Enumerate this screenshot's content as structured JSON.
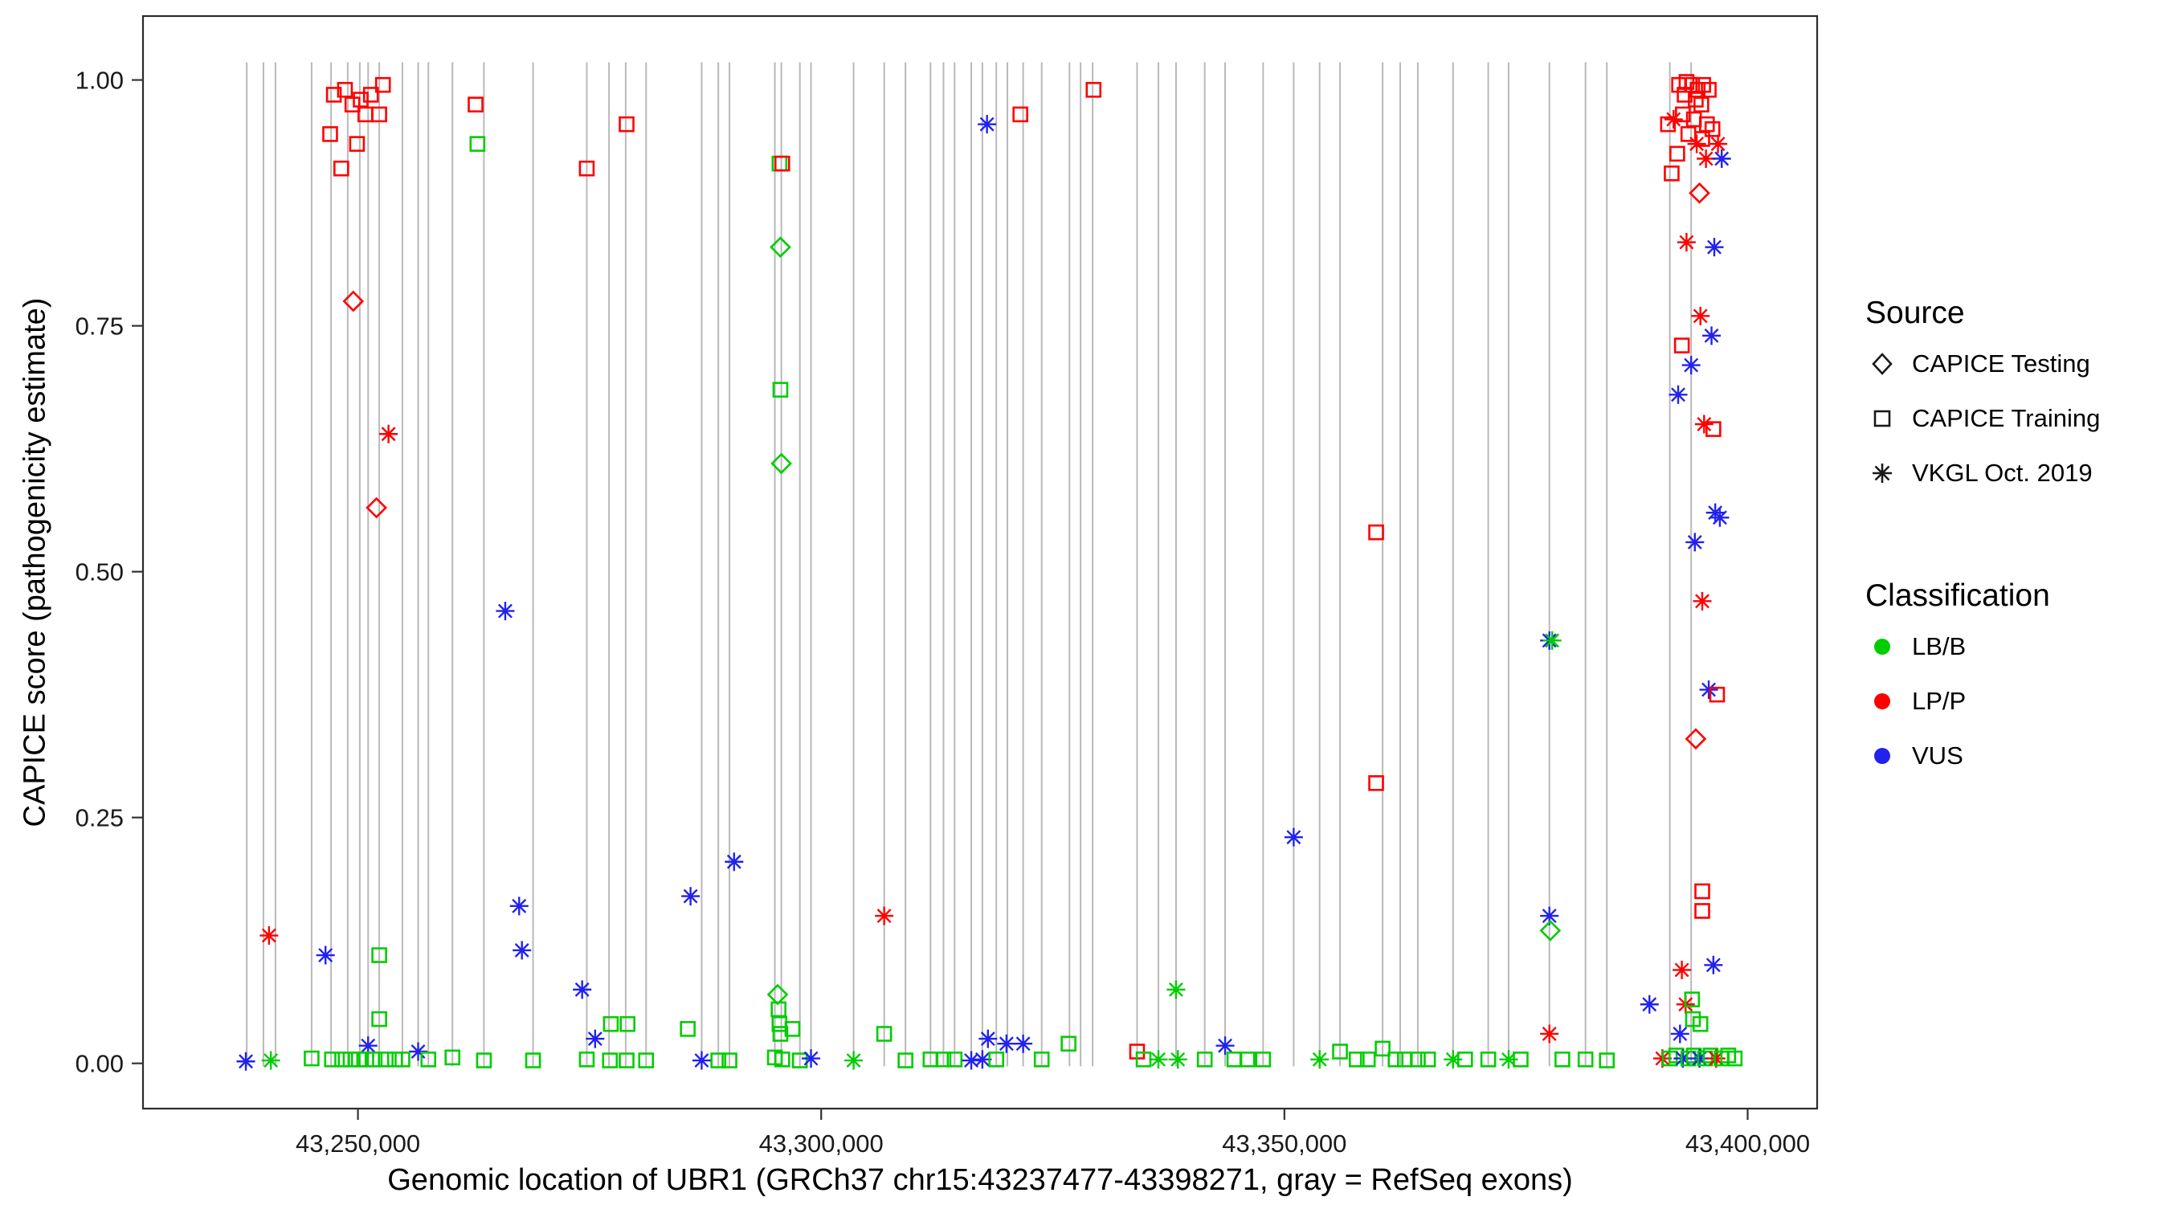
{
  "chart_data": {
    "type": "scatter",
    "title": "",
    "xlabel": "Genomic location of UBR1 (GRCh37 chr15:43237477-43398271, gray = RefSeq exons)",
    "ylabel": "CAPICE score (pathogenicity estimate)",
    "x_domain": [
      43226800,
      43407500
    ],
    "y_domain": [
      -0.046,
      1.065
    ],
    "grid": false,
    "legend_position": "right",
    "x_ticks": [
      {
        "value": 43250000,
        "label": "43,250,000"
      },
      {
        "value": 43300000,
        "label": "43,300,000"
      },
      {
        "value": 43350000,
        "label": "43,350,000"
      },
      {
        "value": 43400000,
        "label": "43,400,000"
      }
    ],
    "y_ticks": [
      {
        "value": 0,
        "label": "0.00"
      },
      {
        "value": 0.25,
        "label": "0.25"
      },
      {
        "value": 0.5,
        "label": "0.50"
      },
      {
        "value": 0.75,
        "label": "0.75"
      },
      {
        "value": 1,
        "label": "1.00"
      }
    ],
    "legend": {
      "source": {
        "title": "Source",
        "items": [
          {
            "label": "CAPICE Testing",
            "shape": "diamond"
          },
          {
            "label": "CAPICE Training",
            "shape": "square"
          },
          {
            "label": "VKGL Oct. 2019",
            "shape": "asterisk"
          }
        ]
      },
      "classification": {
        "title": "Classification",
        "items": [
          {
            "label": "LB/B",
            "color": "#00CD00"
          },
          {
            "label": "LP/P",
            "color": "#FF0000"
          },
          {
            "label": "VUS",
            "color": "#2222EE"
          }
        ]
      }
    },
    "classification_colors": {
      "LB/B": "#00CD00",
      "LP/P": "#FF0000",
      "VUS": "#2222EE"
    },
    "source_shapes": {
      "testing": "diamond",
      "training": "square",
      "vkgl": "asterisk"
    },
    "exon_line_color": "#b9b9b9",
    "exons": [
      43238000,
      43239800,
      43241100,
      43245000,
      43247100,
      43248900,
      43250200,
      43251100,
      43252300,
      43254800,
      43256500,
      43257600,
      43260200,
      43263600,
      43268900,
      43274700,
      43277100,
      43278900,
      43281100,
      43287100,
      43288900,
      43290100,
      43295000,
      43295700,
      43297700,
      43298900,
      43303500,
      43306800,
      43309100,
      43311800,
      43313200,
      43314400,
      43316200,
      43317400,
      43318900,
      43320100,
      43321800,
      43323800,
      43326800,
      43328000,
      43329300,
      43334100,
      43336400,
      43338300,
      43341400,
      43343600,
      43347700,
      43351000,
      43353800,
      43356000,
      43360600,
      43362500,
      43364400,
      43368200,
      43372000,
      43374200,
      43378600,
      43382500,
      43384800,
      43391600,
      43393900
    ],
    "points": [
      [
        43247000,
        0.945,
        "LP/P",
        "training"
      ],
      [
        43247400,
        0.985,
        "LP/P",
        "training"
      ],
      [
        43248200,
        0.91,
        "LP/P",
        "training"
      ],
      [
        43248600,
        0.99,
        "LP/P",
        "training"
      ],
      [
        43249400,
        0.975,
        "LP/P",
        "training"
      ],
      [
        43249900,
        0.935,
        "LP/P",
        "training"
      ],
      [
        43250300,
        0.98,
        "LP/P",
        "training"
      ],
      [
        43250800,
        0.965,
        "LP/P",
        "training"
      ],
      [
        43251400,
        0.985,
        "LP/P",
        "training"
      ],
      [
        43252300,
        0.965,
        "LP/P",
        "training"
      ],
      [
        43252700,
        0.995,
        "LP/P",
        "training"
      ],
      [
        43249500,
        0.775,
        "LP/P",
        "testing"
      ],
      [
        43252000,
        0.565,
        "LP/P",
        "testing"
      ],
      [
        43253300,
        0.64,
        "LP/P",
        "vkgl"
      ],
      [
        43240400,
        0.13,
        "LP/P",
        "vkgl"
      ],
      [
        43246500,
        0.11,
        "VUS",
        "vkgl"
      ],
      [
        43252300,
        0.11,
        "LB/B",
        "training"
      ],
      [
        43252300,
        0.045,
        "LB/B",
        "training"
      ],
      [
        43251100,
        0.018,
        "VUS",
        "vkgl"
      ],
      [
        43256500,
        0.012,
        "VUS",
        "vkgl"
      ],
      [
        43237900,
        0.002,
        "VUS",
        "vkgl"
      ],
      [
        43240600,
        0.003,
        "LB/B",
        "vkgl"
      ],
      [
        43245000,
        0.005,
        "LB/B",
        "training"
      ],
      [
        43247200,
        0.004,
        "LB/B",
        "training"
      ],
      [
        43248300,
        0.004,
        "LB/B",
        "training"
      ],
      [
        43249200,
        0.004,
        "LB/B",
        "training"
      ],
      [
        43250100,
        0.004,
        "LB/B",
        "training"
      ],
      [
        43250900,
        0.004,
        "LB/B",
        "training"
      ],
      [
        43251800,
        0.004,
        "LB/B",
        "training"
      ],
      [
        43253000,
        0.004,
        "LB/B",
        "training"
      ],
      [
        43254000,
        0.004,
        "LB/B",
        "training"
      ],
      [
        43254800,
        0.004,
        "LB/B",
        "training"
      ],
      [
        43257600,
        0.004,
        "LB/B",
        "training"
      ],
      [
        43260200,
        0.006,
        "LB/B",
        "training"
      ],
      [
        43263600,
        0.003,
        "LB/B",
        "training"
      ],
      [
        43262700,
        0.975,
        "LP/P",
        "training"
      ],
      [
        43262900,
        0.935,
        "LB/B",
        "training"
      ],
      [
        43265900,
        0.46,
        "VUS",
        "vkgl"
      ],
      [
        43267400,
        0.16,
        "VUS",
        "vkgl"
      ],
      [
        43267700,
        0.115,
        "VUS",
        "vkgl"
      ],
      [
        43268900,
        0.003,
        "LB/B",
        "training"
      ],
      [
        43274200,
        0.075,
        "VUS",
        "vkgl"
      ],
      [
        43274700,
        0.91,
        "LP/P",
        "training"
      ],
      [
        43274700,
        0.004,
        "LB/B",
        "training"
      ],
      [
        43275600,
        0.025,
        "VUS",
        "vkgl"
      ],
      [
        43277200,
        0.003,
        "LB/B",
        "training"
      ],
      [
        43277300,
        0.04,
        "LB/B",
        "training"
      ],
      [
        43279000,
        0.955,
        "LP/P",
        "training"
      ],
      [
        43279000,
        0.003,
        "LB/B",
        "training"
      ],
      [
        43279100,
        0.04,
        "LB/B",
        "training"
      ],
      [
        43281100,
        0.003,
        "LB/B",
        "training"
      ],
      [
        43285600,
        0.035,
        "LB/B",
        "training"
      ],
      [
        43285900,
        0.17,
        "VUS",
        "vkgl"
      ],
      [
        43287100,
        0.003,
        "VUS",
        "vkgl"
      ],
      [
        43288900,
        0.003,
        "LB/B",
        "training"
      ],
      [
        43290100,
        0.003,
        "LB/B",
        "training"
      ],
      [
        43290600,
        0.205,
        "VUS",
        "vkgl"
      ],
      [
        43295500,
        0.915,
        "LB/B",
        "training"
      ],
      [
        43295800,
        0.915,
        "LP/P",
        "training"
      ],
      [
        43295600,
        0.83,
        "LB/B",
        "testing"
      ],
      [
        43295600,
        0.685,
        "LB/B",
        "training"
      ],
      [
        43295700,
        0.61,
        "LB/B",
        "testing"
      ],
      [
        43295300,
        0.07,
        "LB/B",
        "testing"
      ],
      [
        43295400,
        0.055,
        "LB/B",
        "training"
      ],
      [
        43295500,
        0.04,
        "LB/B",
        "training"
      ],
      [
        43295600,
        0.03,
        "LB/B",
        "training"
      ],
      [
        43296900,
        0.035,
        "LB/B",
        "training"
      ],
      [
        43295000,
        0.006,
        "LB/B",
        "training"
      ],
      [
        43295800,
        0.004,
        "LB/B",
        "training"
      ],
      [
        43297700,
        0.003,
        "LB/B",
        "training"
      ],
      [
        43298900,
        0.005,
        "VUS",
        "vkgl"
      ],
      [
        43303500,
        0.003,
        "LB/B",
        "vkgl"
      ],
      [
        43306800,
        0.15,
        "LP/P",
        "vkgl"
      ],
      [
        43306800,
        0.03,
        "LB/B",
        "training"
      ],
      [
        43309100,
        0.003,
        "LB/B",
        "training"
      ],
      [
        43311800,
        0.004,
        "LB/B",
        "training"
      ],
      [
        43313200,
        0.004,
        "LB/B",
        "training"
      ],
      [
        43314400,
        0.004,
        "LB/B",
        "training"
      ],
      [
        43316200,
        0.003,
        "VUS",
        "vkgl"
      ],
      [
        43317400,
        0.004,
        "VUS",
        "vkgl"
      ],
      [
        43317900,
        0.955,
        "VUS",
        "vkgl"
      ],
      [
        43318000,
        0.025,
        "VUS",
        "vkgl"
      ],
      [
        43318900,
        0.004,
        "LB/B",
        "training"
      ],
      [
        43320000,
        0.02,
        "VUS",
        "vkgl"
      ],
      [
        43321500,
        0.965,
        "LP/P",
        "training"
      ],
      [
        43321800,
        0.02,
        "VUS",
        "vkgl"
      ],
      [
        43323800,
        0.004,
        "LB/B",
        "training"
      ],
      [
        43326700,
        0.02,
        "LB/B",
        "training"
      ],
      [
        43329400,
        0.99,
        "LP/P",
        "training"
      ],
      [
        43334100,
        0.012,
        "LP/P",
        "training"
      ],
      [
        43334800,
        0.004,
        "LB/B",
        "training"
      ],
      [
        43336400,
        0.004,
        "LB/B",
        "vkgl"
      ],
      [
        43338300,
        0.075,
        "LB/B",
        "vkgl"
      ],
      [
        43338500,
        0.004,
        "LB/B",
        "vkgl"
      ],
      [
        43341400,
        0.004,
        "LB/B",
        "training"
      ],
      [
        43343600,
        0.018,
        "VUS",
        "vkgl"
      ],
      [
        43344600,
        0.004,
        "LB/B",
        "training"
      ],
      [
        43346000,
        0.004,
        "LB/B",
        "training"
      ],
      [
        43347700,
        0.004,
        "LB/B",
        "training"
      ],
      [
        43351000,
        0.23,
        "VUS",
        "vkgl"
      ],
      [
        43353800,
        0.004,
        "LB/B",
        "vkgl"
      ],
      [
        43356000,
        0.012,
        "LB/B",
        "training"
      ],
      [
        43357800,
        0.004,
        "LB/B",
        "training"
      ],
      [
        43359000,
        0.004,
        "LB/B",
        "training"
      ],
      [
        43359900,
        0.54,
        "LP/P",
        "training"
      ],
      [
        43359900,
        0.285,
        "LP/P",
        "training"
      ],
      [
        43360600,
        0.015,
        "LB/B",
        "training"
      ],
      [
        43362000,
        0.004,
        "LB/B",
        "training"
      ],
      [
        43363000,
        0.004,
        "LB/B",
        "training"
      ],
      [
        43364400,
        0.004,
        "LB/B",
        "training"
      ],
      [
        43365500,
        0.004,
        "LB/B",
        "training"
      ],
      [
        43368200,
        0.004,
        "LB/B",
        "vkgl"
      ],
      [
        43369500,
        0.004,
        "LB/B",
        "training"
      ],
      [
        43372000,
        0.004,
        "LB/B",
        "training"
      ],
      [
        43374200,
        0.004,
        "LB/B",
        "vkgl"
      ],
      [
        43375500,
        0.004,
        "LB/B",
        "training"
      ],
      [
        43378600,
        0.43,
        "VUS",
        "vkgl"
      ],
      [
        43378900,
        0.43,
        "LB/B",
        "vkgl"
      ],
      [
        43378600,
        0.15,
        "VUS",
        "vkgl"
      ],
      [
        43378700,
        0.135,
        "LB/B",
        "testing"
      ],
      [
        43378600,
        0.03,
        "LP/P",
        "vkgl"
      ],
      [
        43380000,
        0.004,
        "LB/B",
        "training"
      ],
      [
        43382500,
        0.004,
        "LB/B",
        "training"
      ],
      [
        43384800,
        0.003,
        "LB/B",
        "training"
      ],
      [
        43391400,
        0.955,
        "LP/P",
        "training"
      ],
      [
        43391800,
        0.905,
        "LP/P",
        "training"
      ],
      [
        43392400,
        0.925,
        "LP/P",
        "training"
      ],
      [
        43392600,
        0.995,
        "LP/P",
        "training"
      ],
      [
        43393000,
        0.965,
        "LP/P",
        "training"
      ],
      [
        43393200,
        0.985,
        "LP/P",
        "training"
      ],
      [
        43393400,
        0.998,
        "LP/P",
        "training"
      ],
      [
        43393600,
        0.945,
        "LP/P",
        "training"
      ],
      [
        43394000,
        0.995,
        "LP/P",
        "training"
      ],
      [
        43394200,
        0.96,
        "LP/P",
        "training"
      ],
      [
        43394400,
        0.98,
        "LP/P",
        "training"
      ],
      [
        43394600,
        0.99,
        "LP/P",
        "training"
      ],
      [
        43395000,
        0.975,
        "LP/P",
        "training"
      ],
      [
        43395100,
        0.94,
        "LP/P",
        "training"
      ],
      [
        43395200,
        0.995,
        "LP/P",
        "training"
      ],
      [
        43395600,
        0.955,
        "LP/P",
        "training"
      ],
      [
        43395800,
        0.99,
        "LP/P",
        "training"
      ],
      [
        43396200,
        0.95,
        "LP/P",
        "training"
      ],
      [
        43392000,
        0.96,
        "LP/P",
        "vkgl"
      ],
      [
        43394500,
        0.935,
        "LP/P",
        "vkgl"
      ],
      [
        43396800,
        0.935,
        "LP/P",
        "vkgl"
      ],
      [
        43395500,
        0.92,
        "LP/P",
        "vkgl"
      ],
      [
        43397200,
        0.92,
        "VUS",
        "vkgl"
      ],
      [
        43394800,
        0.885,
        "LP/P",
        "testing"
      ],
      [
        43393400,
        0.835,
        "LP/P",
        "vkgl"
      ],
      [
        43396400,
        0.83,
        "VUS",
        "vkgl"
      ],
      [
        43394900,
        0.76,
        "LP/P",
        "vkgl"
      ],
      [
        43396100,
        0.74,
        "VUS",
        "vkgl"
      ],
      [
        43393900,
        0.71,
        "VUS",
        "vkgl"
      ],
      [
        43392900,
        0.73,
        "LP/P",
        "training"
      ],
      [
        43392500,
        0.68,
        "VUS",
        "vkgl"
      ],
      [
        43395300,
        0.65,
        "LP/P",
        "vkgl"
      ],
      [
        43396300,
        0.645,
        "LP/P",
        "training"
      ],
      [
        43396500,
        0.56,
        "VUS",
        "vkgl"
      ],
      [
        43397000,
        0.555,
        "VUS",
        "vkgl"
      ],
      [
        43394300,
        0.53,
        "VUS",
        "vkgl"
      ],
      [
        43395100,
        0.47,
        "LP/P",
        "vkgl"
      ],
      [
        43395800,
        0.38,
        "VUS",
        "vkgl"
      ],
      [
        43396700,
        0.375,
        "LP/P",
        "training"
      ],
      [
        43394400,
        0.33,
        "LP/P",
        "testing"
      ],
      [
        43395100,
        0.175,
        "LP/P",
        "training"
      ],
      [
        43395100,
        0.155,
        "LP/P",
        "training"
      ],
      [
        43389400,
        0.06,
        "VUS",
        "vkgl"
      ],
      [
        43392900,
        0.095,
        "LP/P",
        "vkgl"
      ],
      [
        43396300,
        0.1,
        "VUS",
        "vkgl"
      ],
      [
        43393300,
        0.06,
        "LP/P",
        "vkgl"
      ],
      [
        43394000,
        0.065,
        "LB/B",
        "training"
      ],
      [
        43394100,
        0.045,
        "LB/B",
        "training"
      ],
      [
        43394900,
        0.04,
        "LB/B",
        "training"
      ],
      [
        43392700,
        0.03,
        "VUS",
        "vkgl"
      ],
      [
        43390800,
        0.005,
        "LP/P",
        "vkgl"
      ],
      [
        43391600,
        0.005,
        "LB/B",
        "training"
      ],
      [
        43392300,
        0.008,
        "LB/B",
        "training"
      ],
      [
        43393000,
        0.005,
        "VUS",
        "vkgl"
      ],
      [
        43393600,
        0.005,
        "LB/B",
        "training"
      ],
      [
        43394200,
        0.008,
        "LB/B",
        "training"
      ],
      [
        43394800,
        0.005,
        "VUS",
        "vkgl"
      ],
      [
        43395400,
        0.005,
        "LB/B",
        "training"
      ],
      [
        43396000,
        0.008,
        "LB/B",
        "training"
      ],
      [
        43396600,
        0.005,
        "LP/P",
        "vkgl"
      ],
      [
        43397200,
        0.005,
        "LB/B",
        "training"
      ],
      [
        43397900,
        0.008,
        "LB/B",
        "training"
      ],
      [
        43398600,
        0.005,
        "LB/B",
        "training"
      ]
    ]
  }
}
